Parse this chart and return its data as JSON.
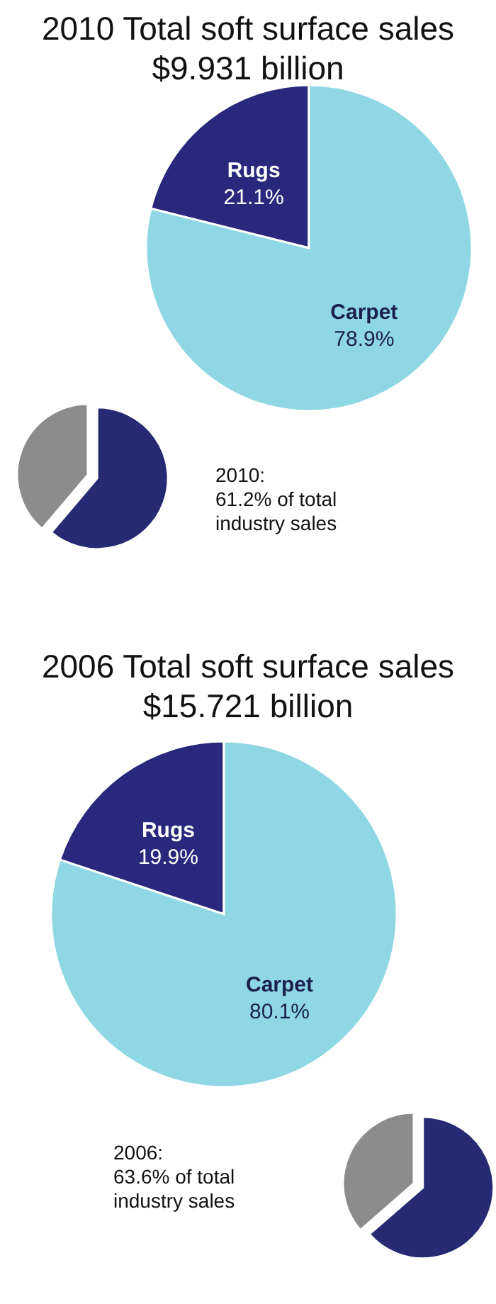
{
  "chart_data": [
    {
      "type": "pie",
      "title": "2010 Total soft surface sales",
      "subtitle": "$9.931 billion",
      "categories": [
        "Rugs",
        "Carpet"
      ],
      "values": [
        21.1,
        78.9
      ],
      "value_labels": [
        "21.1%",
        "78.9%"
      ],
      "colors": [
        "#28297c",
        "#8fd7e4"
      ]
    },
    {
      "type": "pie",
      "categories": [
        null,
        null
      ],
      "values": [
        61.2,
        38.8
      ],
      "colors": [
        "#252a72",
        "#8c8c8c"
      ],
      "annotations": [
        "2010:",
        "61.2% of total industry sales"
      ]
    },
    {
      "type": "pie",
      "title": "2006 Total soft surface sales",
      "subtitle": "$15.721 billion",
      "categories": [
        "Rugs",
        "Carpet"
      ],
      "values": [
        19.9,
        80.1
      ],
      "value_labels": [
        "19.9%",
        "80.1%"
      ],
      "colors": [
        "#28297c",
        "#8fd7e4"
      ]
    },
    {
      "type": "pie",
      "categories": [
        null,
        null
      ],
      "values": [
        63.6,
        36.4
      ],
      "colors": [
        "#252a72",
        "#8c8c8c"
      ],
      "annotations": [
        "2006:",
        "63.6% of total industry sales"
      ]
    }
  ]
}
